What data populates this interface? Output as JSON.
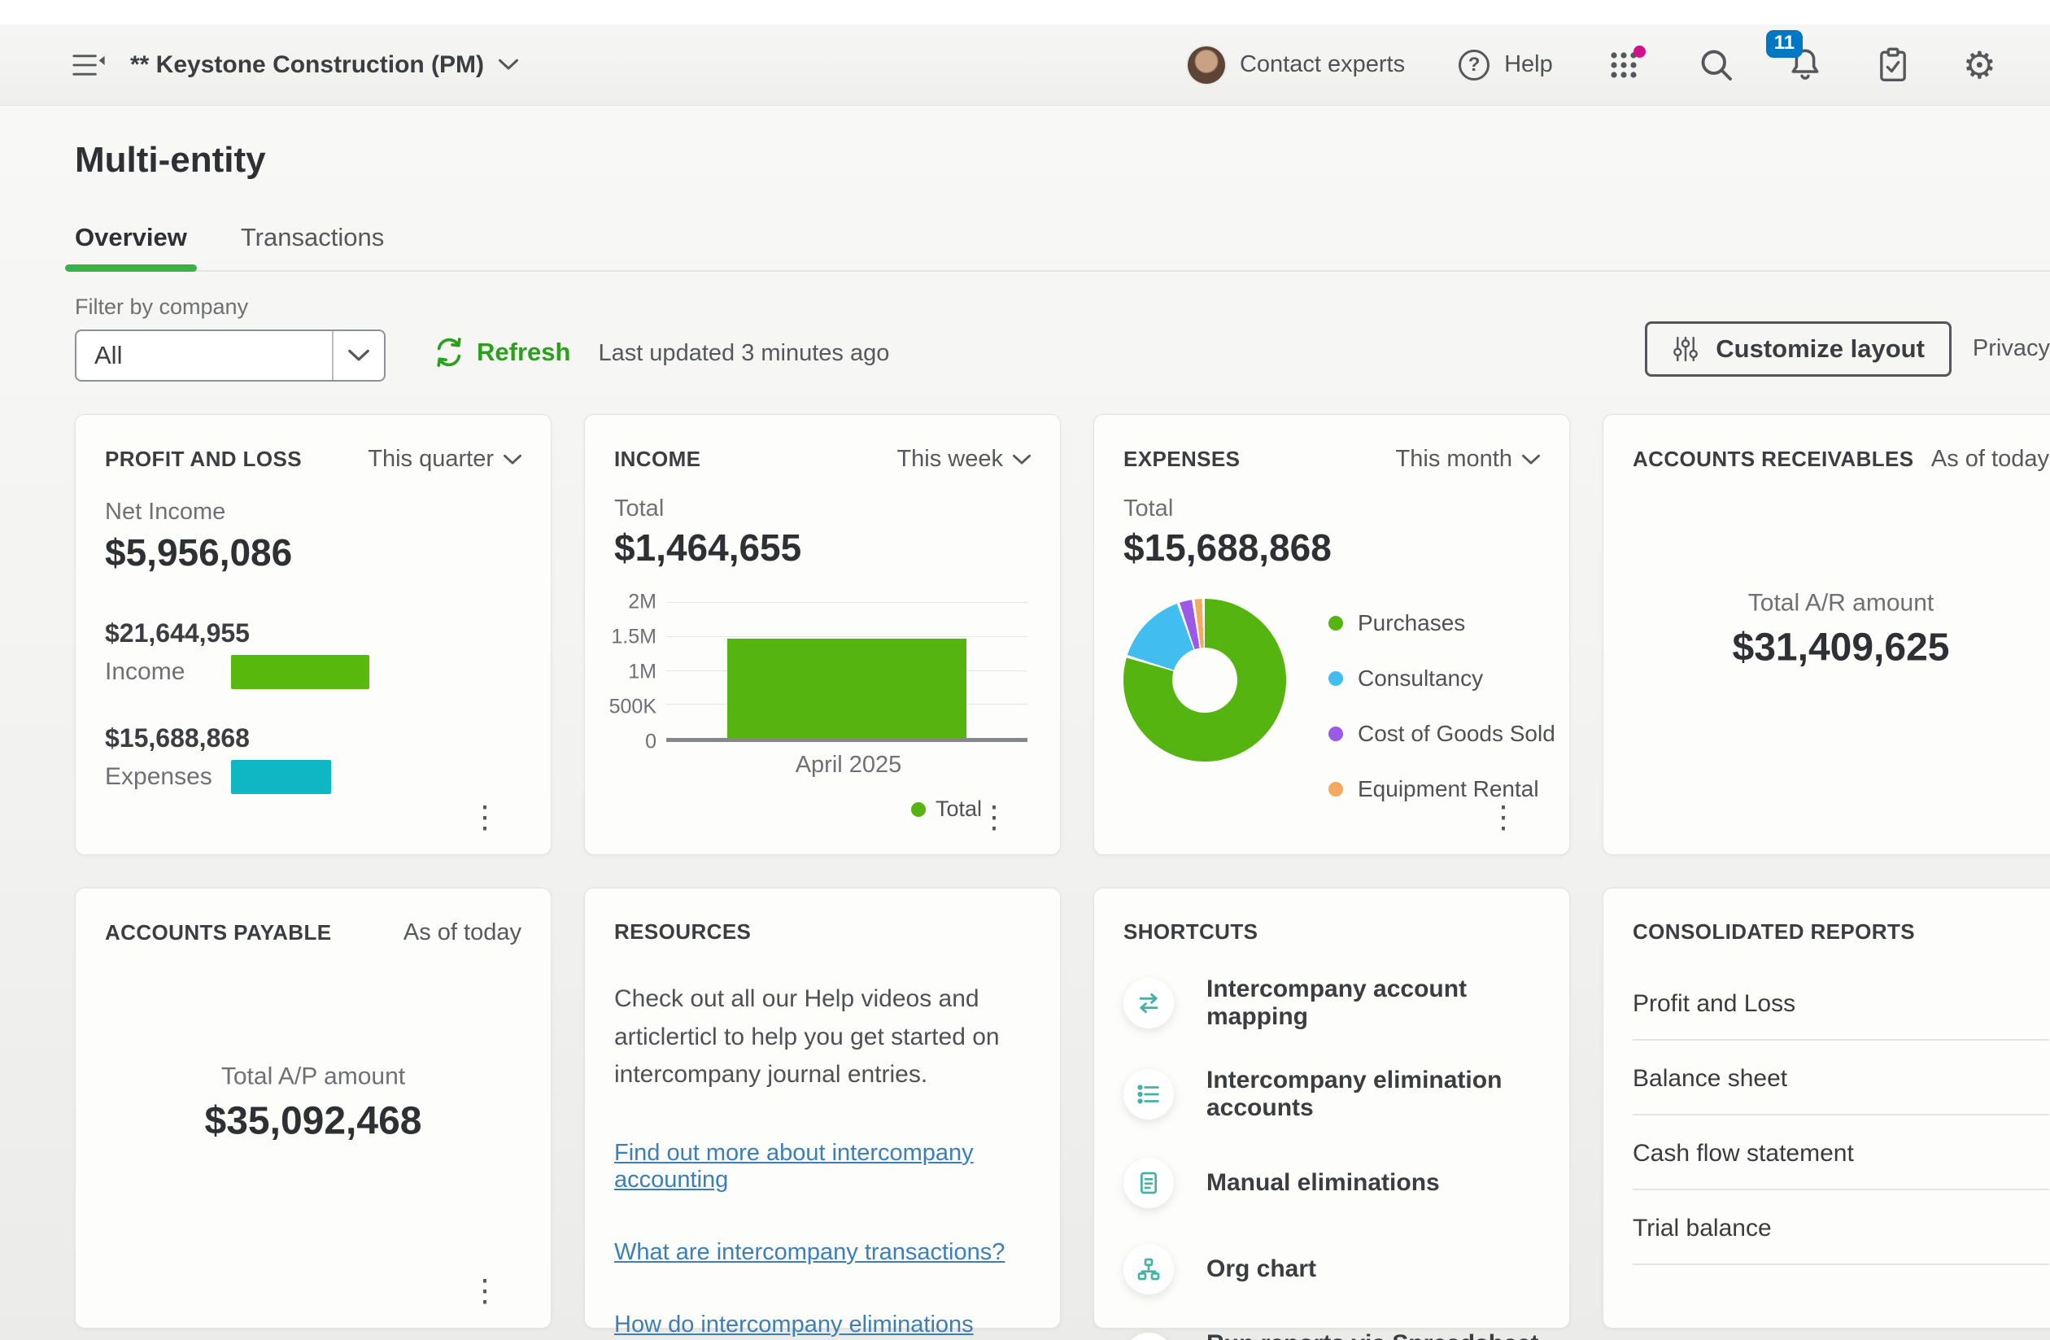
{
  "topbar": {
    "company": "** Keystone Construction (PM)",
    "contact_experts": "Contact experts",
    "help": "Help",
    "notification_count": "11"
  },
  "page": {
    "title": "Multi-entity",
    "tabs": [
      {
        "label": "Overview",
        "active": true
      },
      {
        "label": "Transactions",
        "active": false
      }
    ],
    "filter_label": "Filter by company",
    "filter_value": "All",
    "refresh_label": "Refresh",
    "last_updated": "Last updated 3 minutes ago",
    "customize_label": "Customize layout",
    "privacy_label": "Privacy"
  },
  "cards": {
    "profit_loss": {
      "title": "PROFIT AND LOSS",
      "period": "This quarter",
      "net_income_label": "Net Income",
      "net_income": "$5,956,086",
      "rows": [
        {
          "value": "$21,644,955",
          "label": "Income",
          "color": "#58b80c"
        },
        {
          "value": "$15,688,868",
          "label": "Expenses",
          "color": "#0fb6c4"
        }
      ]
    },
    "income": {
      "title": "INCOME",
      "period": "This week",
      "total_label": "Total",
      "total": "$1,464,655",
      "x_label": "April 2025",
      "legend": "Total",
      "yticks": [
        "2M",
        "1.5M",
        "1M",
        "500K",
        "0"
      ]
    },
    "expenses": {
      "title": "EXPENSES",
      "period": "This month",
      "total_label": "Total",
      "total": "$15,688,868",
      "legend": [
        {
          "label": "Purchases",
          "color": "#56b411"
        },
        {
          "label": "Consultancy",
          "color": "#41bdef"
        },
        {
          "label": "Cost of Goods Sold",
          "color": "#9b59e8"
        },
        {
          "label": "Equipment Rental",
          "color": "#f3aa5e"
        }
      ]
    },
    "receivables": {
      "title": "ACCOUNTS RECEIVABLES",
      "period": "As of today",
      "amount_label": "Total A/R amount",
      "amount": "$31,409,625"
    },
    "payable": {
      "title": "ACCOUNTS PAYABLE",
      "period": "As of today",
      "amount_label": "Total A/P amount",
      "amount": "$35,092,468"
    },
    "resources": {
      "title": "RESOURCES",
      "body": "Check out all our Help videos and articlerticl to help you get started on intercompany journal entries.",
      "links": [
        "Find out more about intercompany accounting",
        "What are intercompany transactions?",
        "How do intercompany eliminations work?"
      ]
    },
    "shortcuts": {
      "title": "SHORTCUTS",
      "items": [
        {
          "icon": "swap-arrows-icon",
          "label": "Intercompany account mapping"
        },
        {
          "icon": "list-icon",
          "label": "Intercompany elimination accounts"
        },
        {
          "icon": "document-icon",
          "label": "Manual eliminations"
        },
        {
          "icon": "org-chart-icon",
          "label": "Org chart"
        },
        {
          "icon": "spreadsheet-icon",
          "label": "Run reports via Spreadsheet Sync"
        }
      ]
    },
    "reports": {
      "title": "CONSOLIDATED REPORTS",
      "items": [
        "Profit and Loss",
        "Balance sheet",
        "Cash flow statement",
        "Trial balance"
      ]
    }
  },
  "chart_data": [
    {
      "id": "pl-bars",
      "type": "bar",
      "orientation": "horizontal",
      "title": "PROFIT AND LOSS",
      "period": "This quarter",
      "categories": [
        "Income",
        "Expenses"
      ],
      "values": [
        21644955,
        15688868
      ],
      "colors": [
        "#58b80c",
        "#0fb6c4"
      ],
      "net_income": 5956086
    },
    {
      "id": "income-bar",
      "type": "bar",
      "title": "INCOME",
      "period": "This week",
      "categories": [
        "April 2025"
      ],
      "series": [
        {
          "name": "Total",
          "values": [
            1464655
          ],
          "color": "#56b411"
        }
      ],
      "ylim": [
        0,
        2000000
      ],
      "yticks": [
        0,
        500000,
        1000000,
        1500000,
        2000000
      ],
      "ytick_labels": [
        "0",
        "500K",
        "1M",
        "1.5M",
        "2M"
      ],
      "grid": true,
      "legend_position": "bottom-right"
    },
    {
      "id": "expenses-donut",
      "type": "pie",
      "title": "EXPENSES",
      "period": "This month",
      "total": 15688868,
      "labels": [
        "Purchases",
        "Consultancy",
        "Cost of Goods Sold",
        "Equipment Rental"
      ],
      "values_pct": [
        80,
        15,
        3,
        2
      ],
      "colors": [
        "#56b411",
        "#41bdef",
        "#9b59e8",
        "#f3aa5e"
      ],
      "note": "segment percentages estimated from arc angles; only total labeled on screen"
    }
  ],
  "colors": {
    "brand_green": "#2ca01c",
    "tab_underline": "#36b24a",
    "link_blue": "#3c7fb8",
    "badge_blue": "#0077c5",
    "apps_dot": "#d40f8c",
    "text_dark": "#393a3d",
    "text_gray": "#6b6c72"
  }
}
